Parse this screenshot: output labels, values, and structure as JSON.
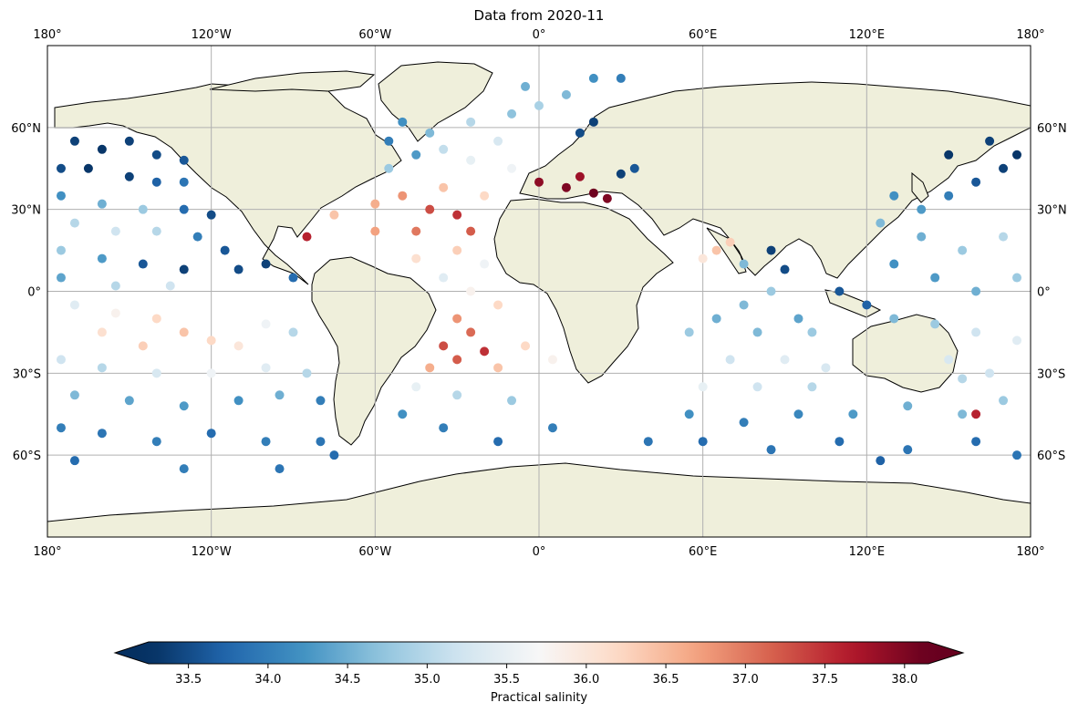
{
  "chart_data": {
    "type": "scatter",
    "title": "Data from 2020-11",
    "projection": "PlateCarree",
    "xlim": [
      -180,
      180
    ],
    "ylim": [
      -90,
      90
    ],
    "grid": true,
    "x_ticks": [
      {
        "value": -180,
        "label": "180°"
      },
      {
        "value": -120,
        "label": "120°W"
      },
      {
        "value": -60,
        "label": "60°W"
      },
      {
        "value": 0,
        "label": "0°"
      },
      {
        "value": 60,
        "label": "60°E"
      },
      {
        "value": 120,
        "label": "120°E"
      },
      {
        "value": 180,
        "label": "180°"
      }
    ],
    "y_ticks": [
      {
        "value": 60,
        "label": "60°N"
      },
      {
        "value": 30,
        "label": "30°N"
      },
      {
        "value": 0,
        "label": "0°"
      },
      {
        "value": -30,
        "label": "30°S"
      },
      {
        "value": -60,
        "label": "60°S"
      }
    ],
    "colorbar": {
      "label": "Practical salinity",
      "cmap": "RdBu_r",
      "vmin": 33.25,
      "vmax": 38.15,
      "extend": "both",
      "ticks": [
        {
          "value": 33.5,
          "label": "33.5"
        },
        {
          "value": 34.0,
          "label": "34.0"
        },
        {
          "value": 34.5,
          "label": "34.5"
        },
        {
          "value": 35.0,
          "label": "35.0"
        },
        {
          "value": 35.5,
          "label": "35.5"
        },
        {
          "value": 36.0,
          "label": "36.0"
        },
        {
          "value": 36.5,
          "label": "36.5"
        },
        {
          "value": 37.0,
          "label": "37.0"
        },
        {
          "value": 37.5,
          "label": "37.5"
        },
        {
          "value": 38.0,
          "label": "38.0"
        }
      ]
    },
    "points": [
      [
        -170,
        55,
        33.4
      ],
      [
        -160,
        52,
        33.3
      ],
      [
        -150,
        55,
        33.4
      ],
      [
        -140,
        50,
        33.5
      ],
      [
        -130,
        48,
        33.6
      ],
      [
        -175,
        45,
        33.5
      ],
      [
        -165,
        45,
        33.3
      ],
      [
        -150,
        42,
        33.4
      ],
      [
        -140,
        40,
        33.7
      ],
      [
        -130,
        40,
        33.9
      ],
      [
        -175,
        35,
        34.2
      ],
      [
        -160,
        32,
        34.5
      ],
      [
        -145,
        30,
        34.8
      ],
      [
        -130,
        30,
        33.8
      ],
      [
        -120,
        28,
        33.5
      ],
      [
        -170,
        25,
        35.0
      ],
      [
        -155,
        22,
        35.2
      ],
      [
        -140,
        22,
        35.0
      ],
      [
        -125,
        20,
        34.0
      ],
      [
        -115,
        15,
        33.6
      ],
      [
        -175,
        15,
        34.8
      ],
      [
        -160,
        12,
        34.3
      ],
      [
        -145,
        10,
        33.6
      ],
      [
        -130,
        8,
        33.4
      ],
      [
        -110,
        8,
        33.5
      ],
      [
        -100,
        10,
        33.4
      ],
      [
        -90,
        5,
        33.8
      ],
      [
        -175,
        5,
        34.4
      ],
      [
        -155,
        2,
        35.0
      ],
      [
        -135,
        2,
        35.2
      ],
      [
        -170,
        -5,
        35.4
      ],
      [
        -155,
        -8,
        35.8
      ],
      [
        -140,
        -10,
        36.2
      ],
      [
        -130,
        -15,
        36.4
      ],
      [
        -120,
        -18,
        36.2
      ],
      [
        -110,
        -20,
        36.0
      ],
      [
        -160,
        -15,
        36.1
      ],
      [
        -145,
        -20,
        36.3
      ],
      [
        -100,
        -12,
        35.6
      ],
      [
        -90,
        -15,
        35.0
      ],
      [
        -175,
        -25,
        35.2
      ],
      [
        -160,
        -28,
        35.0
      ],
      [
        -140,
        -30,
        35.3
      ],
      [
        -120,
        -30,
        35.6
      ],
      [
        -100,
        -28,
        35.4
      ],
      [
        -85,
        -30,
        35.0
      ],
      [
        -170,
        -38,
        34.6
      ],
      [
        -150,
        -40,
        34.4
      ],
      [
        -130,
        -42,
        34.3
      ],
      [
        -110,
        -40,
        34.2
      ],
      [
        -95,
        -38,
        34.5
      ],
      [
        -80,
        -40,
        34.0
      ],
      [
        -175,
        -50,
        34.0
      ],
      [
        -160,
        -52,
        33.9
      ],
      [
        -140,
        -55,
        34.0
      ],
      [
        -120,
        -52,
        33.8
      ],
      [
        -100,
        -55,
        34.0
      ],
      [
        -80,
        -55,
        33.9
      ],
      [
        -170,
        -62,
        33.8
      ],
      [
        -130,
        -65,
        34.0
      ],
      [
        -95,
        -65,
        33.9
      ],
      [
        -75,
        -60,
        33.8
      ],
      [
        -85,
        20,
        37.6
      ],
      [
        -75,
        28,
        36.4
      ],
      [
        -60,
        32,
        36.6
      ],
      [
        -50,
        35,
        36.8
      ],
      [
        -40,
        30,
        37.3
      ],
      [
        -30,
        28,
        37.5
      ],
      [
        -25,
        22,
        37.2
      ],
      [
        -45,
        22,
        37.0
      ],
      [
        -60,
        22,
        36.7
      ],
      [
        -35,
        38,
        36.4
      ],
      [
        -20,
        35,
        36.2
      ],
      [
        -55,
        45,
        34.8
      ],
      [
        -45,
        50,
        34.3
      ],
      [
        -35,
        52,
        35.1
      ],
      [
        -25,
        48,
        35.5
      ],
      [
        -15,
        55,
        35.3
      ],
      [
        -40,
        58,
        34.6
      ],
      [
        -25,
        62,
        35.0
      ],
      [
        -10,
        65,
        34.7
      ],
      [
        0,
        68,
        34.9
      ],
      [
        10,
        72,
        34.6
      ],
      [
        20,
        78,
        34.2
      ],
      [
        30,
        78,
        34.0
      ],
      [
        -5,
        75,
        34.5
      ],
      [
        -50,
        62,
        34.2
      ],
      [
        -55,
        55,
        34.0
      ],
      [
        -30,
        15,
        36.3
      ],
      [
        -45,
        12,
        36.1
      ],
      [
        -20,
        10,
        35.6
      ],
      [
        -35,
        5,
        35.4
      ],
      [
        -25,
        0,
        35.8
      ],
      [
        -15,
        -5,
        36.2
      ],
      [
        -30,
        -10,
        36.8
      ],
      [
        -25,
        -15,
        37.1
      ],
      [
        -35,
        -20,
        37.3
      ],
      [
        -20,
        -22,
        37.5
      ],
      [
        -30,
        -25,
        37.2
      ],
      [
        -40,
        -28,
        36.6
      ],
      [
        -15,
        -28,
        36.4
      ],
      [
        -5,
        -20,
        36.2
      ],
      [
        5,
        -25,
        35.8
      ],
      [
        -45,
        -35,
        35.5
      ],
      [
        -30,
        -38,
        35.0
      ],
      [
        -10,
        -40,
        34.8
      ],
      [
        -50,
        -45,
        34.2
      ],
      [
        -35,
        -50,
        34.0
      ],
      [
        -15,
        -55,
        33.8
      ],
      [
        5,
        -50,
        34.0
      ],
      [
        0,
        40,
        37.9
      ],
      [
        10,
        38,
        38.0
      ],
      [
        20,
        36,
        38.1
      ],
      [
        25,
        34,
        38.0
      ],
      [
        15,
        42,
        37.8
      ],
      [
        30,
        43,
        33.4
      ],
      [
        35,
        45,
        33.6
      ],
      [
        -10,
        45,
        35.6
      ],
      [
        15,
        58,
        33.5
      ],
      [
        20,
        62,
        33.4
      ],
      [
        65,
        15,
        36.4
      ],
      [
        70,
        18,
        36.3
      ],
      [
        60,
        12,
        36.0
      ],
      [
        75,
        10,
        34.6
      ],
      [
        85,
        15,
        33.4
      ],
      [
        90,
        8,
        33.5
      ],
      [
        85,
        0,
        34.8
      ],
      [
        75,
        -5,
        34.6
      ],
      [
        65,
        -10,
        34.5
      ],
      [
        55,
        -15,
        34.8
      ],
      [
        80,
        -15,
        34.6
      ],
      [
        95,
        -10,
        34.4
      ],
      [
        100,
        -15,
        34.8
      ],
      [
        70,
        -25,
        35.2
      ],
      [
        90,
        -25,
        35.4
      ],
      [
        105,
        -28,
        35.3
      ],
      [
        60,
        -35,
        35.5
      ],
      [
        80,
        -35,
        35.2
      ],
      [
        100,
        -35,
        35.0
      ],
      [
        55,
        -45,
        34.2
      ],
      [
        75,
        -48,
        34.0
      ],
      [
        95,
        -45,
        34.1
      ],
      [
        115,
        -45,
        34.3
      ],
      [
        135,
        -42,
        34.5
      ],
      [
        155,
        -45,
        34.6
      ],
      [
        170,
        -40,
        34.8
      ],
      [
        40,
        -55,
        33.9
      ],
      [
        60,
        -55,
        33.8
      ],
      [
        85,
        -58,
        33.9
      ],
      [
        110,
        -55,
        33.8
      ],
      [
        135,
        -58,
        33.9
      ],
      [
        160,
        -55,
        33.8
      ],
      [
        175,
        -60,
        33.9
      ],
      [
        125,
        -62,
        33.7
      ],
      [
        130,
        35,
        34.2
      ],
      [
        140,
        30,
        34.3
      ],
      [
        150,
        35,
        34.0
      ],
      [
        160,
        40,
        33.6
      ],
      [
        170,
        45,
        33.4
      ],
      [
        150,
        50,
        33.3
      ],
      [
        165,
        55,
        33.4
      ],
      [
        175,
        50,
        33.3
      ],
      [
        125,
        25,
        34.6
      ],
      [
        140,
        20,
        34.5
      ],
      [
        155,
        15,
        34.8
      ],
      [
        170,
        20,
        35.0
      ],
      [
        130,
        10,
        34.2
      ],
      [
        145,
        5,
        34.3
      ],
      [
        160,
        0,
        34.5
      ],
      [
        175,
        5,
        34.8
      ],
      [
        130,
        -10,
        34.6
      ],
      [
        145,
        -12,
        34.8
      ],
      [
        160,
        -15,
        35.2
      ],
      [
        175,
        -18,
        35.4
      ],
      [
        150,
        -25,
        35.3
      ],
      [
        165,
        -30,
        35.2
      ],
      [
        160,
        -45,
        37.6
      ],
      [
        155,
        -32,
        35.0
      ],
      [
        120,
        -5,
        33.7
      ],
      [
        110,
        0,
        33.6
      ]
    ]
  },
  "colors": {
    "land": "#efefdb",
    "ocean": "#ffffff",
    "coast": "#000000",
    "grid": "#b0b0b0"
  }
}
